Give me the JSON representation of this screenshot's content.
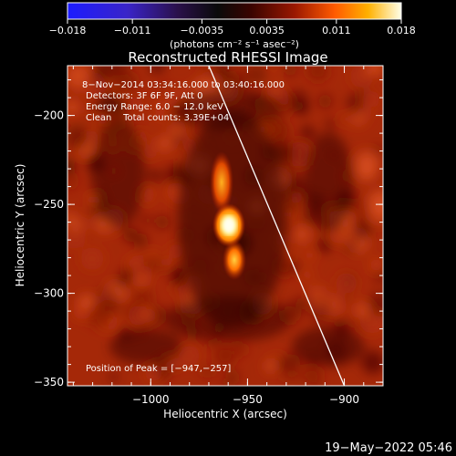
{
  "chart_data": {
    "type": "heatmap",
    "title": "Reconstructed RHESSI Image",
    "xlabel": "Heliocentric X (arcsec)",
    "ylabel": "Heliocentric Y (arcsec)",
    "xlim": [
      -1043,
      -880
    ],
    "ylim": [
      -352,
      -172
    ],
    "xticks": [
      -1000,
      -950,
      -900
    ],
    "xtick_labels": [
      "−1000",
      "−950",
      "−900"
    ],
    "yticks": [
      -350,
      -300,
      -250,
      -200
    ],
    "ytick_labels": [
      "−350",
      "−300",
      "−250",
      "−200"
    ],
    "colorbar": {
      "min": -0.018,
      "max": 0.018,
      "ticks": [
        -0.018,
        -0.011,
        -0.0035,
        0.0035,
        0.011,
        0.018
      ],
      "tick_labels": [
        "−0.018",
        "−0.011",
        "−0.0035",
        "0.0035",
        "0.011",
        "0.018"
      ],
      "units": "(photons cm⁻² s⁻¹ asec⁻²)"
    },
    "annotations": [
      "8−Nov−2014 03:34:16.000 to 03:40:16.000",
      "Detectors: 3F 6F 9F, Att 0",
      "Energy Range: 6.0 − 12.0 keV",
      "Clean    Total counts: 3.39E+04",
      "Position of Peak = [−947,−257]"
    ],
    "peak": [
      -947,
      -257
    ],
    "limb": [
      [
        -970,
        -172
      ],
      [
        -900,
        -352
      ]
    ],
    "sources": [
      {
        "x": -947,
        "y": -257,
        "sigma_x": 3.5,
        "sigma_y": 5,
        "amp": 0.018
      },
      {
        "x": -950,
        "y": -232,
        "sigma_x": 3.5,
        "sigma_y": 11,
        "amp": 0.011
      },
      {
        "x": -946,
        "y": -276,
        "sigma_x": 4,
        "sigma_y": 7,
        "amp": 0.012
      }
    ]
  },
  "footer": {
    "timestamp": "19−May−2022 05:46"
  }
}
